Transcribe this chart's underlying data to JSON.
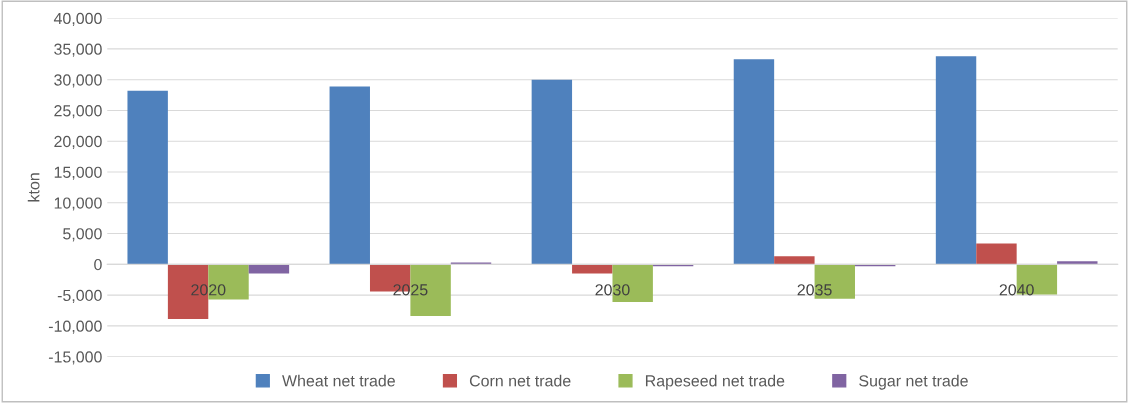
{
  "chart_data": {
    "type": "bar",
    "ylabel": "kton",
    "categories": [
      "2020",
      "2025",
      "2030",
      "2035",
      "2040"
    ],
    "series": [
      {
        "name": "Wheat net trade",
        "color": "#4f81bd",
        "values": [
          28200,
          28900,
          30000,
          33300,
          33800
        ]
      },
      {
        "name": "Corn net trade",
        "color": "#c0504d",
        "values": [
          -8900,
          -4400,
          -1500,
          1300,
          3400
        ]
      },
      {
        "name": "Rapeseed net trade",
        "color": "#9bbb59",
        "values": [
          -5700,
          -8400,
          -6100,
          -5600,
          -4900
        ]
      },
      {
        "name": "Sugar net trade",
        "color": "#8064a2",
        "values": [
          -1500,
          300,
          -300,
          -300,
          500
        ]
      }
    ],
    "ylim": [
      -15000,
      40000
    ],
    "yticks": [
      {
        "value": -15000,
        "label": "-15,000"
      },
      {
        "value": -10000,
        "label": "-10,000"
      },
      {
        "value": -5000,
        "label": "-5,000"
      },
      0,
      {
        "value": 5000,
        "label": "5,000"
      },
      {
        "value": 10000,
        "label": "10,000"
      },
      {
        "value": 15000,
        "label": "15,000"
      },
      {
        "value": 20000,
        "label": "20,000"
      },
      {
        "value": 25000,
        "label": "25,000"
      },
      {
        "value": 30000,
        "label": "30,000"
      },
      {
        "value": 35000,
        "label": "35,000"
      },
      {
        "value": 40000,
        "label": "40,000"
      }
    ],
    "grid": "y",
    "legend": "bottom"
  }
}
